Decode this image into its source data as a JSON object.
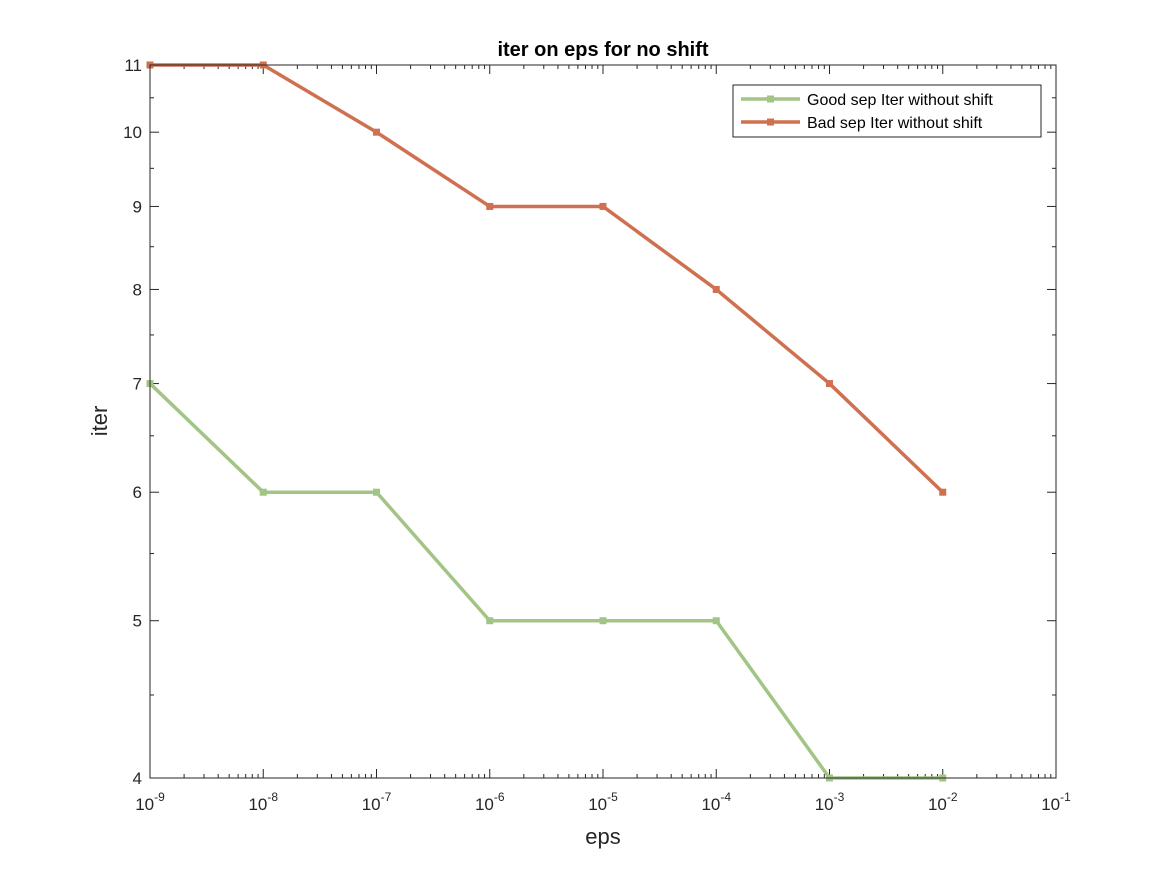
{
  "chart_data": {
    "type": "line",
    "title": "iter on eps for no shift",
    "xlabel": "eps",
    "ylabel": "iter",
    "x_scale": "log",
    "y_scale": "log",
    "xlim": [
      1e-09,
      0.1
    ],
    "ylim": [
      4,
      11
    ],
    "x": [
      1e-09,
      1e-08,
      1e-07,
      1e-06,
      1e-05,
      0.0001,
      0.001,
      0.01
    ],
    "x_ticks": [
      {
        "value": 1e-09,
        "base": "10",
        "exp": "-9"
      },
      {
        "value": 1e-08,
        "base": "10",
        "exp": "-8"
      },
      {
        "value": 1e-07,
        "base": "10",
        "exp": "-7"
      },
      {
        "value": 1e-06,
        "base": "10",
        "exp": "-6"
      },
      {
        "value": 1e-05,
        "base": "10",
        "exp": "-5"
      },
      {
        "value": 0.0001,
        "base": "10",
        "exp": "-4"
      },
      {
        "value": 0.001,
        "base": "10",
        "exp": "-3"
      },
      {
        "value": 0.01,
        "base": "10",
        "exp": "-2"
      },
      {
        "value": 0.1,
        "base": "10",
        "exp": "-1"
      }
    ],
    "y_ticks": [
      4,
      5,
      6,
      7,
      8,
      9,
      10,
      11
    ],
    "grid": false,
    "legend_position": "top-right",
    "series": [
      {
        "name": "Good sep Iter without shift",
        "color": "#a2c585",
        "values": [
          7,
          6,
          6,
          5,
          5,
          5,
          4,
          4
        ]
      },
      {
        "name": "Bad sep Iter without shift",
        "color": "#cf7050",
        "values": [
          11,
          11,
          10,
          9,
          9,
          8,
          7,
          6
        ]
      }
    ]
  }
}
